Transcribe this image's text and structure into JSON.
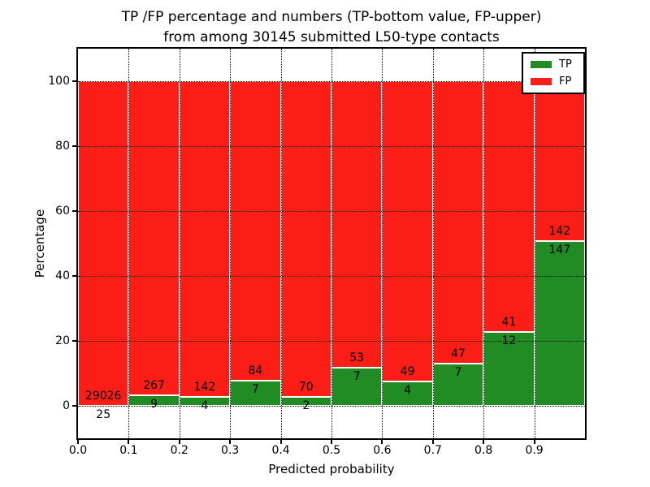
{
  "chart_data": {
    "type": "bar",
    "stacked": true,
    "normalized_to_percent": true,
    "title": "TP /FP percentage and numbers (TP-bottom value, FP-upper)\nfrom among 30145 submitted L50-type contacts",
    "xlabel": "Predicted probability",
    "ylabel": "Percentage",
    "categories": [
      "0.0-0.1",
      "0.1-0.2",
      "0.2-0.3",
      "0.3-0.4",
      "0.4-0.5",
      "0.5-0.6",
      "0.6-0.7",
      "0.7-0.8",
      "0.8-0.9",
      "0.9-1.0"
    ],
    "x_ticks": [
      "0.0",
      "0.1",
      "0.2",
      "0.3",
      "0.4",
      "0.5",
      "0.6",
      "0.7",
      "0.8",
      "0.9"
    ],
    "y_ticks": [
      "0",
      "20",
      "40",
      "60",
      "80",
      "100"
    ],
    "xlim": [
      0.0,
      1.0
    ],
    "ylim": [
      -10,
      110
    ],
    "grid": true,
    "legend_position": "upper right",
    "series": [
      {
        "name": "TP",
        "color": "#208c23",
        "counts": [
          25,
          9,
          4,
          7,
          2,
          7,
          4,
          7,
          12,
          147
        ]
      },
      {
        "name": "FP",
        "color": "#fa1e16",
        "counts": [
          29026,
          267,
          142,
          84,
          70,
          53,
          49,
          47,
          41,
          142
        ]
      }
    ],
    "tp_percent_of_bin": [
      0.09,
      3.26,
      2.74,
      7.69,
      2.78,
      11.67,
      7.55,
      12.96,
      22.64,
      50.87
    ]
  }
}
